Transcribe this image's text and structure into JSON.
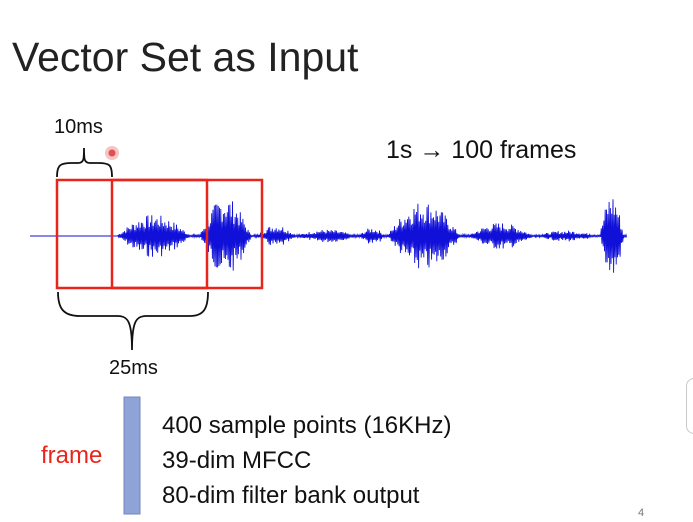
{
  "slide": {
    "title": "Vector Set as Input",
    "page_number": "4"
  },
  "annotations": {
    "hop_label": "10ms",
    "window_label": "25ms",
    "rate_label": "1s → 100 frames"
  },
  "frame_info": {
    "label": "frame",
    "lines": [
      "400 sample points (16KHz)",
      "39-dim MFCC",
      "80-dim filter bank output"
    ]
  },
  "colors": {
    "waveform": "#1010d8",
    "frame_box": "#e8251a",
    "frame_label": "#e8251a",
    "vector_bar": "#8fa4d6",
    "pointer": "#e05050"
  },
  "icons": {
    "pointer": "laser-pointer-icon"
  }
}
